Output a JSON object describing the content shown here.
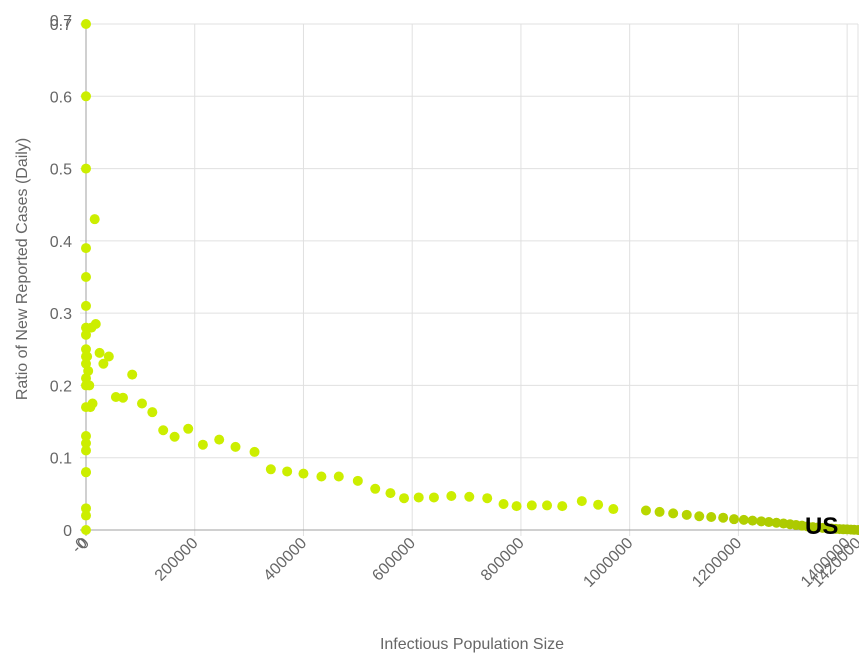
{
  "chart_data": {
    "type": "scatter",
    "title": "",
    "xlabel": "Infectious Population Size",
    "ylabel": "Ratio of New Reported Cases (Daily)",
    "xlim": [
      0,
      1420000
    ],
    "ylim": [
      0,
      0.7
    ],
    "grid": true,
    "x_ticks": [
      "0",
      "200000",
      "400000",
      "600000",
      "800000",
      "1000000",
      "1200000",
      "1400000"
    ],
    "x_edge_tick_labels": [
      "-0",
      "1420000"
    ],
    "y_ticks": [
      "0",
      "0.1",
      "0.2",
      "0.3",
      "0.4",
      "0.5",
      "0.6",
      "0.7"
    ],
    "y_edge_tick_label": "0.7",
    "colors": {
      "early": "#ccee00",
      "late": "#a8c400",
      "grid": "#e0e0e0",
      "axis": "#a0a0a0"
    },
    "series": [
      {
        "name": "US",
        "label": "US",
        "points": [
          [
            0,
            0.7
          ],
          [
            0,
            0.6
          ],
          [
            0,
            0.5
          ],
          [
            0,
            0.39
          ],
          [
            0,
            0.35
          ],
          [
            0,
            0.31
          ],
          [
            0,
            0.28
          ],
          [
            0,
            0.27
          ],
          [
            0,
            0.25
          ],
          [
            0,
            0.24
          ],
          [
            0,
            0.23
          ],
          [
            0,
            0.21
          ],
          [
            0,
            0.2
          ],
          [
            0,
            0.17
          ],
          [
            0,
            0.13
          ],
          [
            0,
            0.12
          ],
          [
            0,
            0.11
          ],
          [
            0,
            0.08
          ],
          [
            0,
            0.08
          ],
          [
            0,
            0.03
          ],
          [
            0,
            0.02
          ],
          [
            0,
            0.0
          ],
          [
            2000,
            0.24
          ],
          [
            4000,
            0.22
          ],
          [
            6000,
            0.2
          ],
          [
            8000,
            0.17
          ],
          [
            10000,
            0.28
          ],
          [
            12000,
            0.175
          ],
          [
            16000,
            0.43
          ],
          [
            18000,
            0.285
          ],
          [
            25000,
            0.245
          ],
          [
            32000,
            0.23
          ],
          [
            42000,
            0.24
          ],
          [
            55000,
            0.184
          ],
          [
            68000,
            0.183
          ],
          [
            85000,
            0.215
          ],
          [
            103000,
            0.175
          ],
          [
            122000,
            0.163
          ],
          [
            142000,
            0.138
          ],
          [
            163000,
            0.129
          ],
          [
            188000,
            0.14
          ],
          [
            215000,
            0.118
          ],
          [
            245000,
            0.125
          ],
          [
            275000,
            0.115
          ],
          [
            310000,
            0.108
          ],
          [
            340000,
            0.084
          ],
          [
            370000,
            0.081
          ],
          [
            400000,
            0.078
          ],
          [
            433000,
            0.074
          ],
          [
            465000,
            0.074
          ],
          [
            500000,
            0.068
          ],
          [
            532000,
            0.057
          ],
          [
            560000,
            0.051
          ],
          [
            585000,
            0.044
          ],
          [
            612000,
            0.045
          ],
          [
            640000,
            0.045
          ],
          [
            672000,
            0.047
          ],
          [
            705000,
            0.046
          ],
          [
            738000,
            0.044
          ],
          [
            768000,
            0.036
          ],
          [
            792000,
            0.033
          ],
          [
            820000,
            0.034
          ],
          [
            848000,
            0.034
          ],
          [
            876000,
            0.033
          ],
          [
            912000,
            0.04
          ],
          [
            942000,
            0.035
          ],
          [
            970000,
            0.029
          ],
          [
            1030000,
            0.027
          ],
          [
            1055000,
            0.025
          ],
          [
            1080000,
            0.023
          ],
          [
            1105000,
            0.021
          ],
          [
            1128000,
            0.019
          ],
          [
            1150000,
            0.018
          ],
          [
            1172000,
            0.017
          ],
          [
            1192000,
            0.015
          ],
          [
            1210000,
            0.014
          ],
          [
            1226000,
            0.013
          ],
          [
            1242000,
            0.012
          ],
          [
            1256000,
            0.011
          ],
          [
            1270000,
            0.01
          ],
          [
            1283000,
            0.009
          ],
          [
            1295000,
            0.008
          ],
          [
            1306000,
            0.007
          ],
          [
            1317000,
            0.006
          ],
          [
            1327000,
            0.005
          ],
          [
            1337000,
            0.004
          ],
          [
            1346000,
            0.0035
          ],
          [
            1355000,
            0.003
          ],
          [
            1363000,
            0.0025
          ],
          [
            1371000,
            0.002
          ],
          [
            1379000,
            0.0015
          ],
          [
            1386000,
            0.0012
          ],
          [
            1393000,
            0.001
          ],
          [
            1400000,
            0.0008
          ],
          [
            1407000,
            0.0005
          ],
          [
            1413000,
            0.0003
          ],
          [
            1420000,
            0.0
          ]
        ]
      }
    ]
  }
}
